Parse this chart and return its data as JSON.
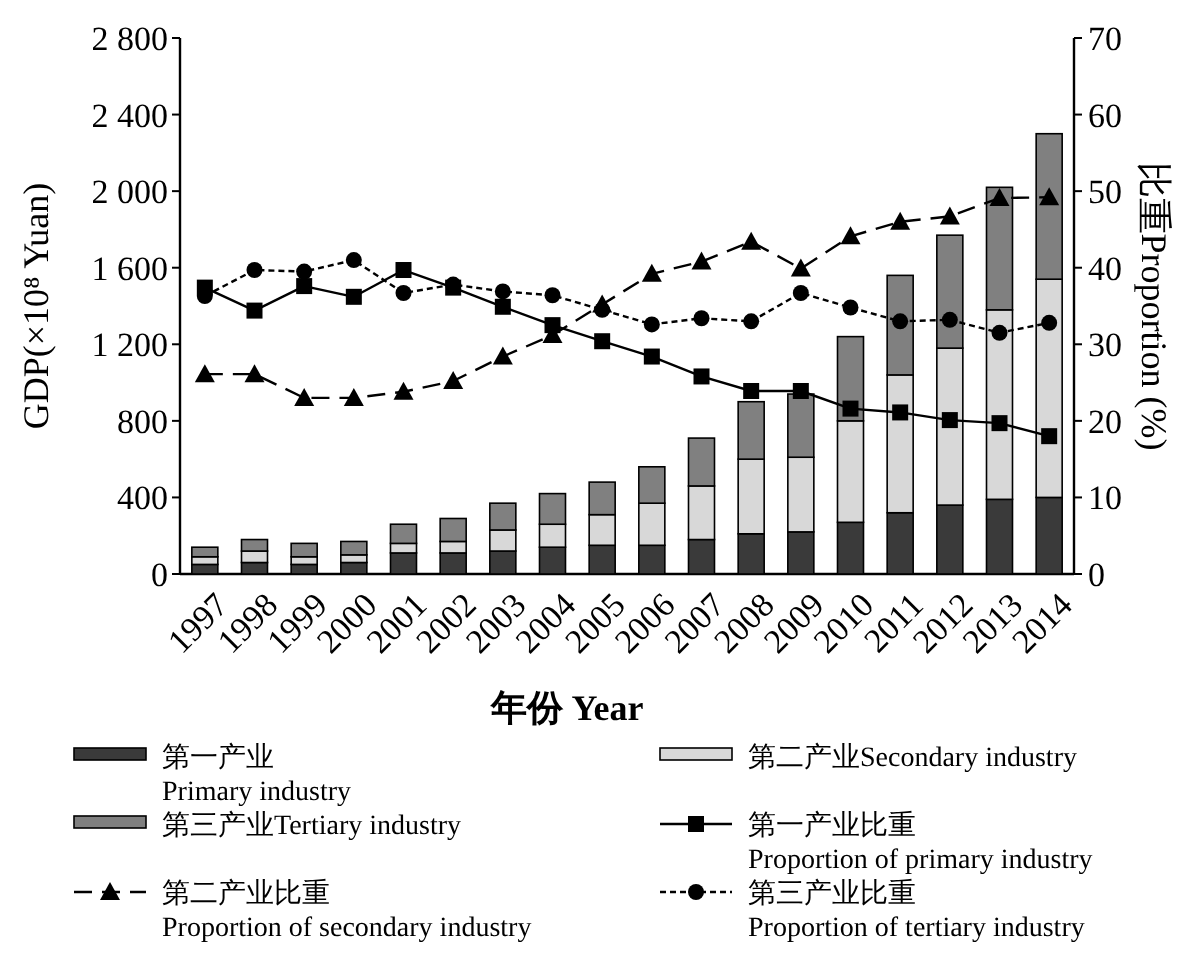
{
  "chart_data": {
    "type": "bar",
    "stacked": true,
    "xlabel": "年份 Year",
    "ylabel": "GDP(×10⁸ Yuan)",
    "y2label": "比重Proportion (%)",
    "categories": [
      "1997",
      "1998",
      "1999",
      "2000",
      "2001",
      "2002",
      "2003",
      "2004",
      "2005",
      "2006",
      "2007",
      "2008",
      "2009",
      "2010",
      "2011",
      "2012",
      "2013",
      "2014"
    ],
    "ylim": [
      0,
      2800
    ],
    "yticks": [
      0,
      400,
      800,
      {
        "value": 1200,
        "label": "1 200"
      },
      {
        "value": 1600,
        "label": "1 600"
      },
      {
        "value": 2000,
        "label": "2 000"
      },
      {
        "value": 2400,
        "label": "2 400"
      },
      {
        "value": 2800,
        "label": "2 800"
      }
    ],
    "y2lim": [
      0,
      70
    ],
    "y2ticks": [
      0,
      10,
      20,
      30,
      40,
      50,
      60,
      70
    ],
    "legend": "bottom",
    "series": [
      {
        "name": "第一产业\nPrimary industry",
        "color": "#3a3a3a",
        "values": [
          50,
          60,
          50,
          60,
          110,
          110,
          120,
          140,
          150,
          150,
          180,
          210,
          220,
          270,
          320,
          360,
          390,
          400
        ]
      },
      {
        "name": "第二产业Secondary industry",
        "color": "#d8d8d8",
        "values": [
          40,
          60,
          40,
          40,
          50,
          60,
          110,
          120,
          160,
          220,
          280,
          390,
          390,
          530,
          720,
          820,
          990,
          1140
        ]
      },
      {
        "name": "第三产业Tertiary industry",
        "color": "#808080",
        "values": [
          50,
          60,
          70,
          70,
          100,
          120,
          140,
          160,
          170,
          190,
          250,
          300,
          330,
          440,
          520,
          590,
          640,
          760
        ]
      },
      {
        "name": "第一产业比重\nProportion of primary industry",
        "type": "line",
        "axis": "y2",
        "color": "#000000",
        "marker": "square",
        "line_style": "solid",
        "values": [
          37.4,
          34.4,
          37.6,
          36.2,
          39.7,
          37.4,
          34.9,
          32.5,
          30.4,
          28.4,
          25.8,
          23.9,
          23.9,
          21.6,
          21.1,
          20.1,
          19.7,
          18.0
        ]
      },
      {
        "name": "第二产业比重\nProportion of secondary industry",
        "type": "line",
        "axis": "y2",
        "color": "#000000",
        "marker": "triangle",
        "line_style": "dashed",
        "values": [
          26.1,
          26.1,
          23.0,
          23.0,
          23.8,
          25.2,
          28.4,
          31.2,
          35.2,
          39.2,
          40.8,
          43.4,
          39.9,
          44.1,
          46.0,
          46.7,
          49.1,
          49.2
        ]
      },
      {
        "name": "第三产业比重\nProportion of tertiary industry",
        "type": "line",
        "axis": "y2",
        "color": "#000000",
        "marker": "circle",
        "line_style": "dotted",
        "values": [
          36.3,
          39.7,
          39.5,
          41.0,
          36.7,
          37.8,
          36.9,
          36.4,
          34.5,
          32.6,
          33.4,
          33.0,
          36.7,
          34.8,
          33.0,
          33.2,
          31.5,
          32.8
        ]
      }
    ]
  }
}
